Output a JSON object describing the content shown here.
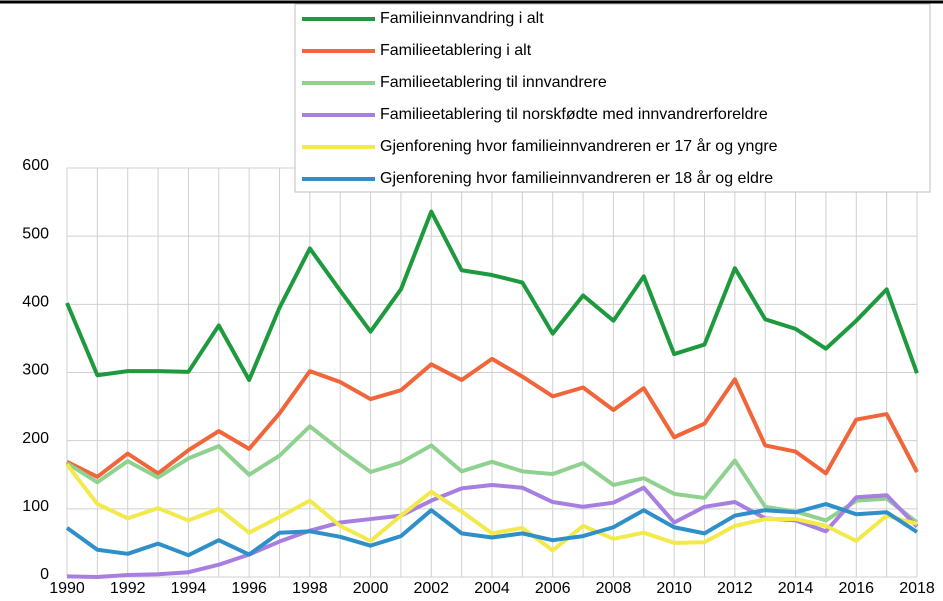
{
  "chart_data": {
    "type": "line",
    "x": [
      1990,
      1991,
      1992,
      1993,
      1994,
      1995,
      1996,
      1997,
      1998,
      1999,
      2000,
      2001,
      2002,
      2003,
      2004,
      2005,
      2006,
      2007,
      2008,
      2009,
      2010,
      2011,
      2012,
      2013,
      2014,
      2015,
      2016,
      2017,
      2018
    ],
    "xlim": [
      1990,
      2018
    ],
    "xticks": [
      1990,
      1992,
      1994,
      1996,
      1998,
      2000,
      2002,
      2004,
      2006,
      2008,
      2010,
      2012,
      2014,
      2016,
      2018
    ],
    "ylim": [
      0,
      600
    ],
    "yticks": [
      0,
      100,
      200,
      300,
      400,
      500,
      600
    ],
    "grid": true,
    "legend": "top-right",
    "series": [
      {
        "name": "Familieinnvandring i alt",
        "color": "#1e9a3e",
        "values": [
          402,
          296,
          302,
          302,
          301,
          369,
          289,
          395,
          482,
          420,
          360,
          422,
          536,
          450,
          443,
          432,
          357,
          413,
          376,
          441,
          327,
          341,
          453,
          378,
          364,
          335,
          376,
          422,
          299
        ]
      },
      {
        "name": "Familieetablering i alt",
        "color": "#f0653a",
        "values": [
          169,
          147,
          181,
          152,
          186,
          214,
          188,
          240,
          302,
          286,
          261,
          274,
          312,
          289,
          320,
          294,
          265,
          278,
          245,
          277,
          205,
          225,
          290,
          193,
          184,
          152,
          231,
          239,
          154
        ]
      },
      {
        "name": "Familieetablering til innvandrere",
        "color": "#8fd18e",
        "values": [
          167,
          139,
          170,
          146,
          174,
          192,
          150,
          178,
          221,
          186,
          154,
          168,
          193,
          155,
          169,
          155,
          151,
          167,
          135,
          145,
          122,
          116,
          171,
          103,
          96,
          83,
          112,
          115,
          80
        ]
      },
      {
        "name": "Familieetablering til norskfødte med innvandrerforeldre",
        "color": "#a77fe0",
        "values": [
          1,
          0,
          3,
          4,
          7,
          18,
          33,
          52,
          68,
          80,
          85,
          90,
          112,
          130,
          135,
          131,
          110,
          103,
          109,
          131,
          80,
          103,
          110,
          86,
          83,
          67,
          117,
          120,
          74
        ]
      },
      {
        "name": "Gjenforening hvor familieinnvandreren er 17 år og yngre",
        "color": "#f2e94a",
        "values": [
          165,
          107,
          86,
          101,
          83,
          100,
          65,
          88,
          112,
          75,
          53,
          90,
          125,
          96,
          64,
          72,
          39,
          75,
          56,
          65,
          50,
          51,
          75,
          85,
          85,
          75,
          53,
          90,
          78
        ]
      },
      {
        "name": "Gjenforening hvor familieinnvandreren er 18 år og eldre",
        "color": "#2e8fc9",
        "values": [
          72,
          40,
          34,
          49,
          32,
          54,
          33,
          65,
          67,
          59,
          46,
          60,
          98,
          64,
          58,
          64,
          54,
          60,
          73,
          98,
          73,
          64,
          90,
          98,
          95,
          107,
          92,
          95,
          66
        ]
      }
    ]
  }
}
